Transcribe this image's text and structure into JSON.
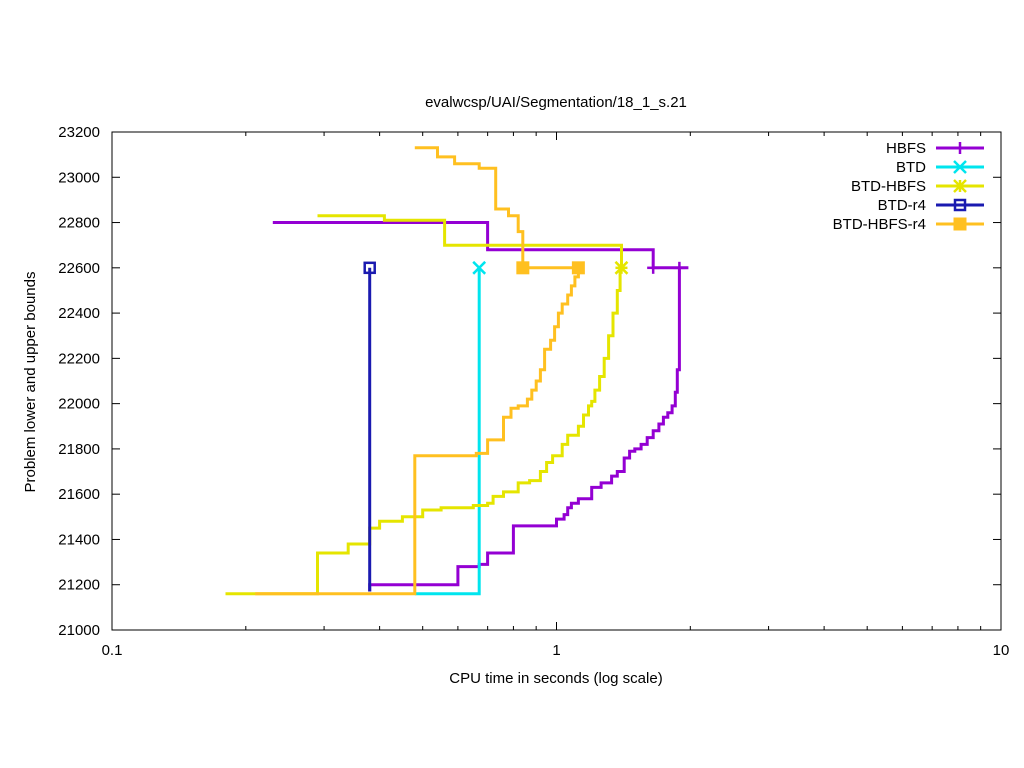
{
  "chart_data": {
    "type": "line",
    "title": "evalwcsp/UAI/Segmentation/18_1_s.21",
    "xlabel": "CPU time in seconds (log scale)",
    "ylabel": "Problem lower and upper bounds",
    "xscale": "log",
    "xlim": [
      0.1,
      10
    ],
    "ylim": [
      21000,
      23200
    ],
    "xticks": [
      {
        "value": 0.1,
        "label": "0.1"
      },
      {
        "value": 1,
        "label": "1"
      },
      {
        "value": 10,
        "label": "10"
      }
    ],
    "yticks": [
      {
        "value": 21000,
        "label": "21000"
      },
      {
        "value": 21200,
        "label": "21200"
      },
      {
        "value": 21400,
        "label": "21400"
      },
      {
        "value": 21600,
        "label": "21600"
      },
      {
        "value": 21800,
        "label": "21800"
      },
      {
        "value": 22000,
        "label": "22000"
      },
      {
        "value": 22200,
        "label": "22200"
      },
      {
        "value": 22400,
        "label": "22400"
      },
      {
        "value": 22600,
        "label": "22600"
      },
      {
        "value": 22800,
        "label": "22800"
      },
      {
        "value": 23000,
        "label": "23000"
      },
      {
        "value": 23200,
        "label": "23200"
      }
    ],
    "grid": false,
    "legend_position": "top-right",
    "series": [
      {
        "name": "HBFS",
        "color": "#9400d3",
        "marker": "plus",
        "upper": [
          [
            0.23,
            22800
          ],
          [
            0.7,
            22800
          ],
          [
            0.7,
            22680
          ],
          [
            1.65,
            22680
          ],
          [
            1.65,
            22600
          ],
          [
            1.98,
            22600
          ]
        ],
        "lower": [
          [
            0.38,
            21170
          ],
          [
            0.38,
            21200
          ],
          [
            0.6,
            21200
          ],
          [
            0.6,
            21280
          ],
          [
            0.67,
            21280
          ],
          [
            0.67,
            21290
          ],
          [
            0.7,
            21290
          ],
          [
            0.7,
            21340
          ],
          [
            0.8,
            21340
          ],
          [
            0.8,
            21460
          ],
          [
            1.0,
            21460
          ],
          [
            1.0,
            21490
          ],
          [
            1.04,
            21490
          ],
          [
            1.04,
            21510
          ],
          [
            1.06,
            21510
          ],
          [
            1.06,
            21540
          ],
          [
            1.08,
            21540
          ],
          [
            1.08,
            21560
          ],
          [
            1.12,
            21560
          ],
          [
            1.12,
            21580
          ],
          [
            1.2,
            21580
          ],
          [
            1.2,
            21630
          ],
          [
            1.26,
            21630
          ],
          [
            1.26,
            21650
          ],
          [
            1.33,
            21650
          ],
          [
            1.33,
            21680
          ],
          [
            1.37,
            21680
          ],
          [
            1.37,
            21700
          ],
          [
            1.42,
            21700
          ],
          [
            1.42,
            21760
          ],
          [
            1.46,
            21760
          ],
          [
            1.46,
            21790
          ],
          [
            1.5,
            21790
          ],
          [
            1.5,
            21800
          ],
          [
            1.55,
            21800
          ],
          [
            1.55,
            21820
          ],
          [
            1.6,
            21820
          ],
          [
            1.6,
            21850
          ],
          [
            1.65,
            21850
          ],
          [
            1.65,
            21880
          ],
          [
            1.7,
            21880
          ],
          [
            1.7,
            21910
          ],
          [
            1.74,
            21910
          ],
          [
            1.74,
            21940
          ],
          [
            1.78,
            21940
          ],
          [
            1.78,
            21960
          ],
          [
            1.82,
            21960
          ],
          [
            1.82,
            21990
          ],
          [
            1.85,
            21990
          ],
          [
            1.85,
            22050
          ],
          [
            1.87,
            22050
          ],
          [
            1.87,
            22150
          ],
          [
            1.89,
            22150
          ],
          [
            1.89,
            22600
          ]
        ],
        "marker_points": [
          [
            1.65,
            22600
          ],
          [
            1.89,
            22600
          ]
        ]
      },
      {
        "name": "BTD",
        "color": "#00e5ee",
        "marker": "cross",
        "upper": [
          [
            0.67,
            22600
          ]
        ],
        "lower": [
          [
            0.48,
            21160
          ],
          [
            0.67,
            21160
          ],
          [
            0.67,
            22600
          ]
        ],
        "marker_points": [
          [
            0.67,
            22600
          ]
        ]
      },
      {
        "name": "BTD-HBFS",
        "color": "#e5e500",
        "marker": "star",
        "upper": [
          [
            0.29,
            22830
          ],
          [
            0.41,
            22830
          ],
          [
            0.41,
            22810
          ],
          [
            0.56,
            22810
          ],
          [
            0.56,
            22700
          ],
          [
            1.4,
            22700
          ],
          [
            1.4,
            22600
          ]
        ],
        "lower": [
          [
            0.18,
            21160
          ],
          [
            0.29,
            21160
          ],
          [
            0.29,
            21340
          ],
          [
            0.34,
            21340
          ],
          [
            0.34,
            21380
          ],
          [
            0.38,
            21380
          ],
          [
            0.38,
            21450
          ],
          [
            0.4,
            21450
          ],
          [
            0.4,
            21480
          ],
          [
            0.45,
            21480
          ],
          [
            0.45,
            21500
          ],
          [
            0.5,
            21500
          ],
          [
            0.5,
            21530
          ],
          [
            0.55,
            21530
          ],
          [
            0.55,
            21540
          ],
          [
            0.65,
            21540
          ],
          [
            0.65,
            21550
          ],
          [
            0.7,
            21550
          ],
          [
            0.7,
            21560
          ],
          [
            0.72,
            21560
          ],
          [
            0.72,
            21590
          ],
          [
            0.76,
            21590
          ],
          [
            0.76,
            21610
          ],
          [
            0.82,
            21610
          ],
          [
            0.82,
            21650
          ],
          [
            0.87,
            21650
          ],
          [
            0.87,
            21660
          ],
          [
            0.92,
            21660
          ],
          [
            0.92,
            21700
          ],
          [
            0.95,
            21700
          ],
          [
            0.95,
            21740
          ],
          [
            0.98,
            21740
          ],
          [
            0.98,
            21770
          ],
          [
            1.03,
            21770
          ],
          [
            1.03,
            21820
          ],
          [
            1.06,
            21820
          ],
          [
            1.06,
            21860
          ],
          [
            1.12,
            21860
          ],
          [
            1.12,
            21900
          ],
          [
            1.15,
            21900
          ],
          [
            1.15,
            21950
          ],
          [
            1.18,
            21950
          ],
          [
            1.18,
            21990
          ],
          [
            1.2,
            21990
          ],
          [
            1.2,
            22010
          ],
          [
            1.22,
            22010
          ],
          [
            1.22,
            22060
          ],
          [
            1.25,
            22060
          ],
          [
            1.25,
            22120
          ],
          [
            1.28,
            22120
          ],
          [
            1.28,
            22200
          ],
          [
            1.31,
            22200
          ],
          [
            1.31,
            22300
          ],
          [
            1.34,
            22300
          ],
          [
            1.34,
            22400
          ],
          [
            1.37,
            22400
          ],
          [
            1.37,
            22500
          ],
          [
            1.39,
            22500
          ],
          [
            1.39,
            22600
          ]
        ],
        "marker_points": [
          [
            1.4,
            22600
          ]
        ]
      },
      {
        "name": "BTD-r4",
        "color": "#1a1ab0",
        "marker": "square",
        "upper": [
          [
            0.38,
            22600
          ]
        ],
        "lower": [
          [
            0.38,
            21170
          ],
          [
            0.38,
            22600
          ]
        ],
        "marker_points": [
          [
            0.38,
            22600
          ]
        ]
      },
      {
        "name": "BTD-HBFS-r4",
        "color": "#ffc020",
        "marker": "filled-square",
        "upper": [
          [
            0.48,
            23130
          ],
          [
            0.54,
            23130
          ],
          [
            0.54,
            23090
          ],
          [
            0.59,
            23090
          ],
          [
            0.59,
            23060
          ],
          [
            0.67,
            23060
          ],
          [
            0.67,
            23040
          ],
          [
            0.73,
            23040
          ],
          [
            0.73,
            22860
          ],
          [
            0.78,
            22860
          ],
          [
            0.78,
            22830
          ],
          [
            0.82,
            22830
          ],
          [
            0.82,
            22760
          ],
          [
            0.84,
            22760
          ],
          [
            0.84,
            22600
          ],
          [
            1.12,
            22600
          ]
        ],
        "lower": [
          [
            0.21,
            21160
          ],
          [
            0.48,
            21160
          ],
          [
            0.48,
            21770
          ],
          [
            0.66,
            21770
          ],
          [
            0.66,
            21780
          ],
          [
            0.7,
            21780
          ],
          [
            0.7,
            21840
          ],
          [
            0.76,
            21840
          ],
          [
            0.76,
            21940
          ],
          [
            0.79,
            21940
          ],
          [
            0.79,
            21980
          ],
          [
            0.82,
            21980
          ],
          [
            0.82,
            21990
          ],
          [
            0.86,
            21990
          ],
          [
            0.86,
            22020
          ],
          [
            0.88,
            22020
          ],
          [
            0.88,
            22060
          ],
          [
            0.9,
            22060
          ],
          [
            0.9,
            22100
          ],
          [
            0.92,
            22100
          ],
          [
            0.92,
            22150
          ],
          [
            0.94,
            22150
          ],
          [
            0.94,
            22240
          ],
          [
            0.97,
            22240
          ],
          [
            0.97,
            22280
          ],
          [
            0.99,
            22280
          ],
          [
            0.99,
            22340
          ],
          [
            1.01,
            22340
          ],
          [
            1.01,
            22400
          ],
          [
            1.03,
            22400
          ],
          [
            1.03,
            22440
          ],
          [
            1.06,
            22440
          ],
          [
            1.06,
            22480
          ],
          [
            1.08,
            22480
          ],
          [
            1.08,
            22520
          ],
          [
            1.1,
            22520
          ],
          [
            1.1,
            22560
          ],
          [
            1.12,
            22560
          ],
          [
            1.12,
            22600
          ]
        ],
        "marker_points": [
          [
            0.84,
            22600
          ],
          [
            1.12,
            22600
          ]
        ]
      }
    ]
  }
}
